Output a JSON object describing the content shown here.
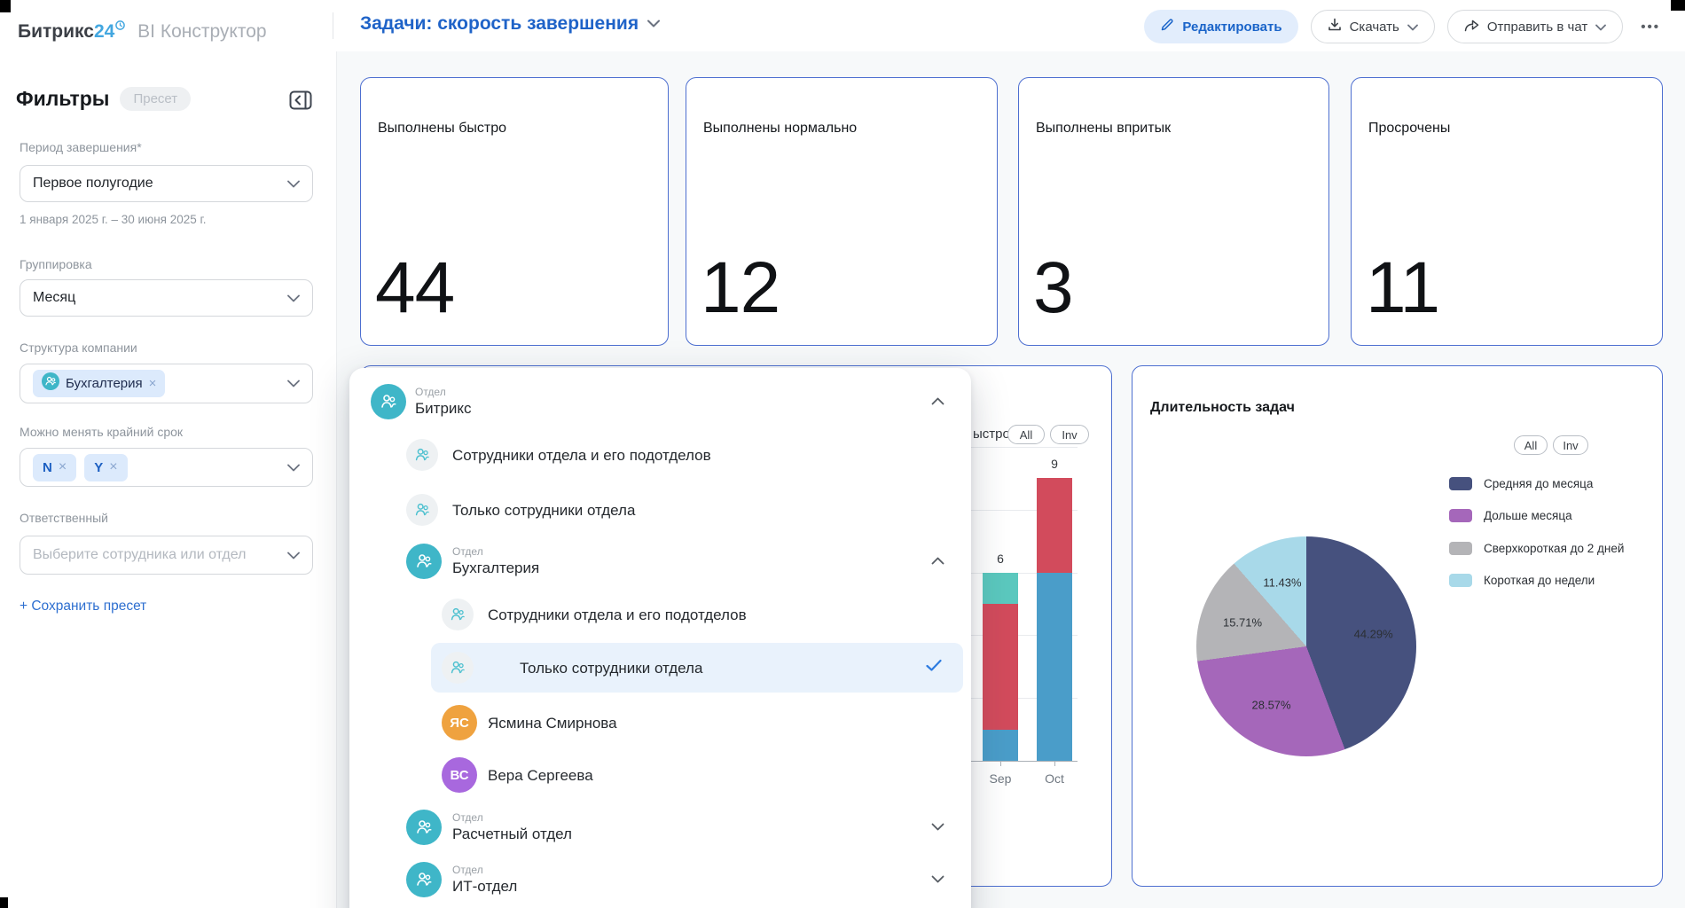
{
  "header": {
    "logo_part1": "Битрикс",
    "logo_part2": "24",
    "logo_suffix": "BI Конструктор",
    "title": "Задачи: скорость завершения",
    "edit_button": "Редактировать",
    "download_button": "Скачать",
    "send_chat_button": "Отправить в чат"
  },
  "sidebar": {
    "heading": "Фильтры",
    "preset_badge": "Пресет",
    "period": {
      "label": "Период завершения*",
      "value": "Первое полугодие",
      "range": "1 января 2025 г. – 30 июня 2025 г."
    },
    "grouping": {
      "label": "Группировка",
      "value": "Месяц"
    },
    "structure": {
      "label": "Структура компании",
      "chip": "Бухгалтерия"
    },
    "deadline": {
      "label": "Можно менять крайний срок",
      "chips": [
        "N",
        "Y"
      ]
    },
    "responsible": {
      "label": "Ответственный",
      "placeholder": "Выберите сотрудника или отдел"
    },
    "save_preset": "+ Сохранить пресет"
  },
  "stat_cards": [
    {
      "label": "Выполнены быстро",
      "value": "44"
    },
    {
      "label": "Выполнены нормально",
      "value": "12"
    },
    {
      "label": "Выполнены впритык",
      "value": "3"
    },
    {
      "label": "Просрочены",
      "value": "11"
    }
  ],
  "dropdown": {
    "items": [
      {
        "kind": "department",
        "type_label": "Отдел",
        "name": "Битрикс",
        "chevron": "up"
      },
      {
        "kind": "option",
        "name": "Сотрудники отдела и его подотделов"
      },
      {
        "kind": "option",
        "name": "Только сотрудники отдела"
      },
      {
        "kind": "department",
        "type_label": "Отдел",
        "name": "Бухгалтерия",
        "chevron": "up"
      },
      {
        "kind": "option",
        "name": "Сотрудники отдела и его подотделов"
      },
      {
        "kind": "option",
        "name": "Только сотрудники отдела",
        "selected": true
      },
      {
        "kind": "person",
        "initials": "ЯС",
        "name": "Ясмина Смирнова",
        "color": "#efa23f"
      },
      {
        "kind": "person",
        "initials": "ВС",
        "name": "Вера Сергеева",
        "color": "#a868de"
      },
      {
        "kind": "department",
        "type_label": "Отдел",
        "name": "Расчетный отдел",
        "chevron": "down"
      },
      {
        "kind": "department",
        "type_label": "Отдел",
        "name": "ИТ-отдел",
        "chevron": "down"
      }
    ]
  },
  "chart_data": [
    {
      "type": "bar",
      "stacked": true,
      "legend_fragment": "ыстро",
      "buttons": [
        "All",
        "Inv"
      ],
      "categories": [
        "Sep",
        "Oct"
      ],
      "series": [
        {
          "name": "blue-segment",
          "color": "#4a9dc9",
          "values": [
            1,
            6
          ]
        },
        {
          "name": "red-segment",
          "color": "#d24b5c",
          "values": [
            4,
            3
          ]
        },
        {
          "name": "teal-segment",
          "color": "#5bc8be",
          "values": [
            1,
            0
          ]
        }
      ],
      "totals": [
        "6",
        "9"
      ],
      "ylim": [
        0,
        10
      ],
      "grid_step": 2
    },
    {
      "type": "pie",
      "title": "Длительность задач",
      "buttons": [
        "All",
        "Inv"
      ],
      "labels": [
        "Средняя до месяца",
        "Дольше месяца",
        "Сверхкороткая до 2 дней",
        "Короткая до недели"
      ],
      "values": [
        44.29,
        28.57,
        15.71,
        11.43
      ],
      "value_labels": [
        "44.29%",
        "28.57%",
        "15.71%",
        "11.43%"
      ],
      "colors": [
        "#46517e",
        "#a567ba",
        "#b4b4b7",
        "#a8d9e9"
      ],
      "legend_position": "right"
    }
  ]
}
